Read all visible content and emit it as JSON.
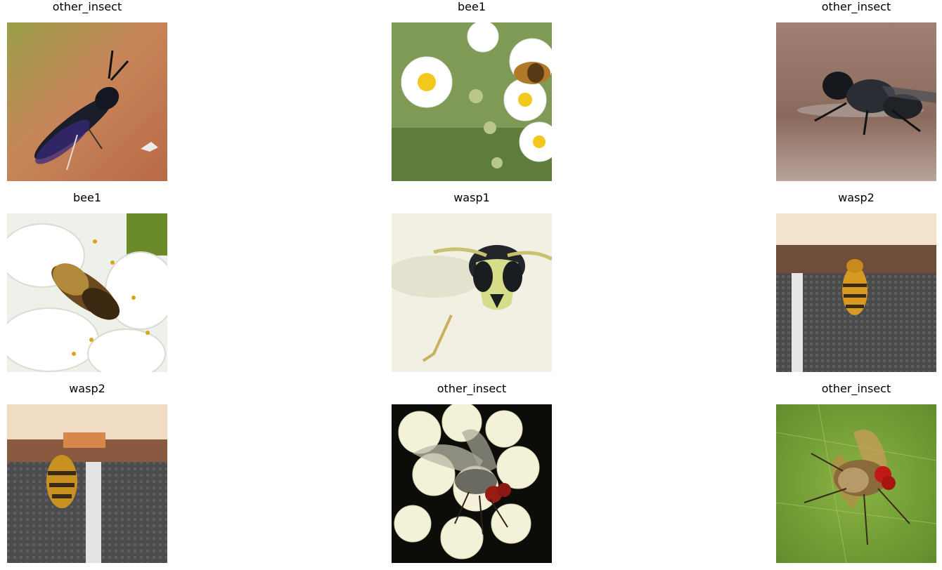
{
  "figure": {
    "rows": [
      [
        {
          "title": "other_insect",
          "subject": "black-soldier-fly",
          "scene": "dark glossy fly with iridescent wings on an orange-brown surface"
        },
        {
          "title": "bee1",
          "subject": "honeybee",
          "scene": "honeybee on white aster flowers with yellow centers"
        },
        {
          "title": "other_insect",
          "subject": "house-fly",
          "scene": "dark bristly fly on a blurred brown surface"
        }
      ],
      [
        {
          "title": "bee1",
          "subject": "mining-bee",
          "scene": "fuzzy bee on white cherry blossom petals"
        },
        {
          "title": "wasp1",
          "subject": "wasp-face",
          "scene": "close-up front view of a yellow and black wasp face"
        },
        {
          "title": "wasp2",
          "subject": "yellowjacket",
          "scene": "yellowjacket on a dark mesh surface under a wooden ledge"
        }
      ],
      [
        {
          "title": "wasp2",
          "subject": "yellowjacket-blurry",
          "scene": "blurred yellowjacket on a dark mesh surface"
        },
        {
          "title": "other_insect",
          "subject": "red-eyed-fly",
          "scene": "red-eyed fly on white flowers against a black background"
        },
        {
          "title": "other_insect",
          "subject": "flesh-fly",
          "scene": "red-eyed fly on a green leaf"
        }
      ]
    ]
  }
}
